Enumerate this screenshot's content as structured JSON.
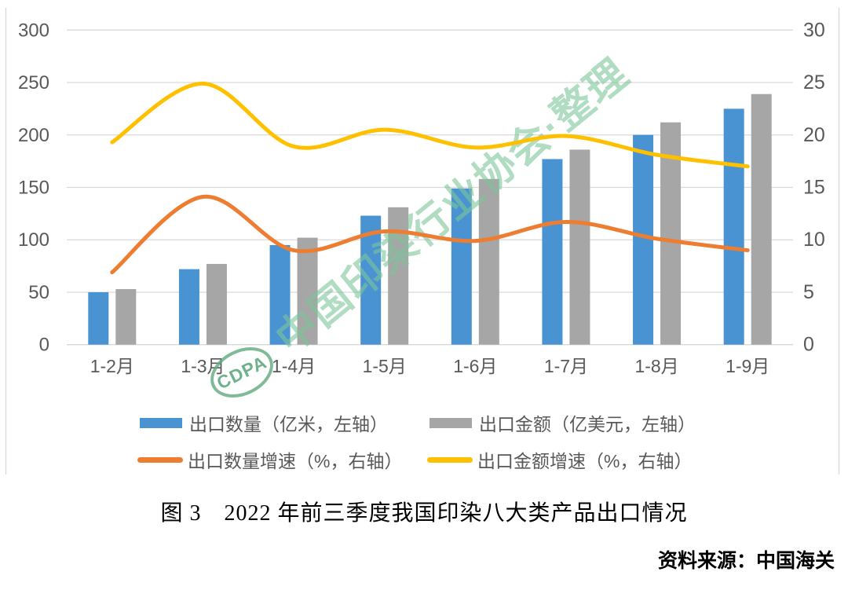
{
  "title": "图 3　2022 年前三季度我国印染八大类产品出口情况",
  "source": "资料来源：中国海关",
  "watermark": {
    "text": "中国印染行业协会·整理",
    "stamp_label": "CDPA",
    "color": "#7CC49A",
    "stamp_color": "#5FA980"
  },
  "legend": {
    "items": [
      {
        "label": "出口数量（亿米，左轴）",
        "type": "bar",
        "color": "#4A93D2"
      },
      {
        "label": "出口金额（亿美元，左轴）",
        "type": "bar",
        "color": "#A6A6A6"
      },
      {
        "label": "出口数量增速（%，右轴）",
        "type": "line",
        "color": "#ED7D31"
      },
      {
        "label": "出口金额增速（%，右轴）",
        "type": "line",
        "color": "#FFC000"
      }
    ]
  },
  "chart_data": {
    "type": "combo",
    "title": "图 3　2022 年前三季度我国印染八大类产品出口情况",
    "categories": [
      "1-2月",
      "1-3月",
      "1-4月",
      "1-5月",
      "1-6月",
      "1-7月",
      "1-8月",
      "1-9月"
    ],
    "series": [
      {
        "name": "出口数量（亿米，左轴）",
        "type": "bar",
        "axis": "left",
        "color": "#4A93D2",
        "values": [
          50,
          72,
          95,
          123,
          149,
          177,
          200,
          225
        ]
      },
      {
        "name": "出口金额（亿美元，左轴）",
        "type": "bar",
        "axis": "left",
        "color": "#A6A6A6",
        "values": [
          53,
          77,
          102,
          131,
          158,
          186,
          212,
          239
        ]
      },
      {
        "name": "出口数量增速（%，右轴）",
        "type": "line",
        "axis": "right",
        "color": "#ED7D31",
        "values": [
          6.9,
          14.1,
          9.0,
          10.8,
          9.9,
          11.7,
          10.1,
          9.0
        ]
      },
      {
        "name": "出口金额增速（%，右轴）",
        "type": "line",
        "axis": "right",
        "color": "#FFC000",
        "values": [
          19.3,
          24.9,
          18.9,
          20.5,
          18.8,
          19.9,
          18.1,
          17.0
        ]
      }
    ],
    "left_axis": {
      "min": 0,
      "max": 300,
      "step": 50,
      "ticks": [
        0,
        50,
        100,
        150,
        200,
        250,
        300
      ]
    },
    "right_axis": {
      "min": 0,
      "max": 30,
      "step": 5,
      "ticks": [
        0,
        5,
        10,
        15,
        20,
        25,
        30
      ]
    },
    "grid": true,
    "legend_position": "bottom",
    "colors": {
      "gridline": "#D9D9D9",
      "axis_text": "#595959",
      "background": "#FFFFFF"
    }
  }
}
